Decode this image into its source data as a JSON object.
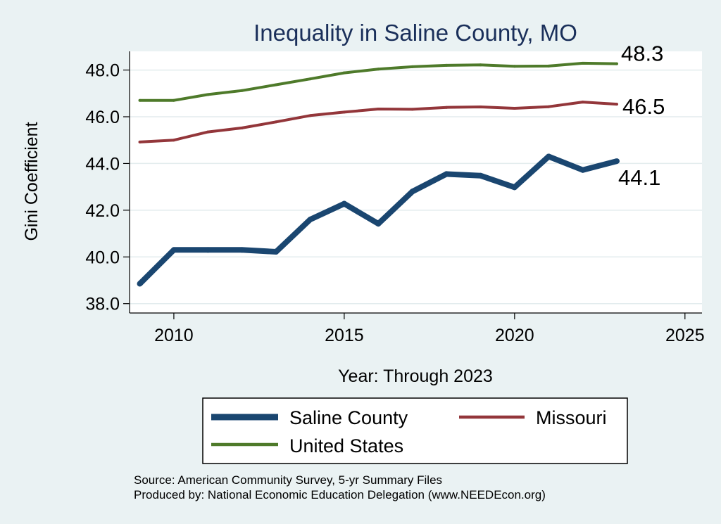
{
  "chart_data": {
    "type": "line",
    "title": "Inequality in Saline County, MO",
    "xlabel": "Year: Through 2023",
    "ylabel": "Gini Coefficient",
    "xlim": [
      2008.7,
      2025.5
    ],
    "ylim": [
      37.6,
      48.8
    ],
    "x_ticks": [
      2010,
      2015,
      2020,
      2025
    ],
    "y_ticks": [
      38,
      40,
      42,
      44,
      46,
      48
    ],
    "y_tick_labels": [
      "38.0",
      "40.0",
      "42.0",
      "44.0",
      "46.0",
      "48.0"
    ],
    "grid": true,
    "x": [
      2009,
      2010,
      2011,
      2012,
      2013,
      2014,
      2015,
      2016,
      2017,
      2018,
      2019,
      2020,
      2021,
      2022,
      2023
    ],
    "series": [
      {
        "name": "Saline County",
        "color": "#1a4670",
        "values": [
          38.85,
          40.3,
          40.3,
          40.3,
          40.22,
          41.6,
          42.28,
          41.42,
          42.8,
          43.55,
          43.48,
          42.98,
          44.3,
          43.72,
          44.1
        ],
        "end_label": "44.1"
      },
      {
        "name": "Missouri",
        "color": "#93363a",
        "values": [
          44.92,
          45.0,
          45.35,
          45.52,
          45.78,
          46.05,
          46.2,
          46.33,
          46.32,
          46.4,
          46.42,
          46.36,
          46.43,
          46.63,
          46.54
        ],
        "end_label": "46.5"
      },
      {
        "name": "United States",
        "color": "#4e7a2a",
        "values": [
          46.7,
          46.7,
          46.95,
          47.12,
          47.37,
          47.62,
          47.88,
          48.04,
          48.14,
          48.2,
          48.22,
          48.16,
          48.17,
          48.29,
          48.27
        ],
        "end_label": "48.3"
      }
    ],
    "legend": {
      "placement": "bottom",
      "entries": [
        "Saline County",
        "Missouri",
        "United States"
      ]
    }
  },
  "source": {
    "line1": "Source: American Community Survey, 5-yr Summary Files",
    "line2": "Produced by: National Economic Education Delegation (www.NEEDEcon.org)"
  }
}
